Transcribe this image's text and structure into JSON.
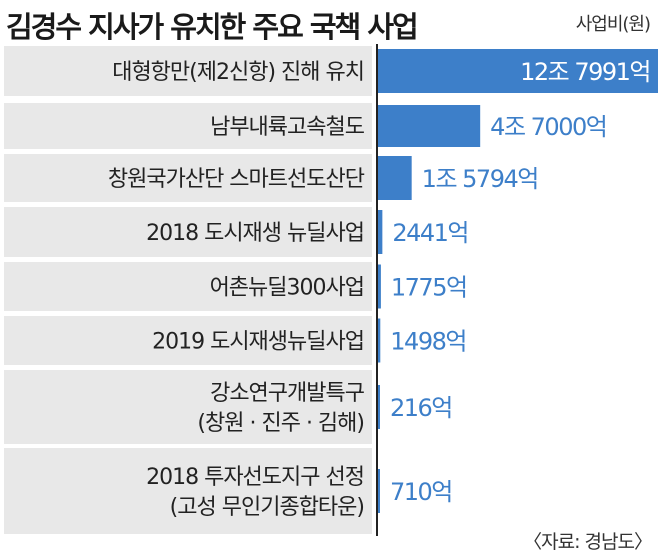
{
  "header": {
    "title": "김경수 지사가 유치한 주요 국책 사업",
    "unit": "사업비(원)"
  },
  "source": "〈자료: 경남도〉",
  "colors": {
    "bar": "#3d7fc9",
    "value_text": "#3d7fc9",
    "value_text_inside": "#ffffff",
    "row_bg": "#e8e8e8",
    "axis": "#222222"
  },
  "chart_data": {
    "type": "bar",
    "orientation": "horizontal",
    "title": "김경수 지사가 유치한 주요 국책 사업",
    "unit_label": "사업비(원)",
    "categories": [
      [
        "대형항만(제2신항) 진해 유치"
      ],
      [
        "남부내륙고속철도"
      ],
      [
        "창원국가산단 스마트선도산단"
      ],
      [
        "2018 도시재생 뉴딜사업"
      ],
      [
        "어촌뉴딜300사업"
      ],
      [
        "2019 도시재생뉴딜사업"
      ],
      [
        "강소연구개발특구",
        "(창원 · 진주 · 김해)"
      ],
      [
        "2018 투자선도지구 선정",
        "(고성 무인기종합타운)"
      ]
    ],
    "values": [
      127991,
      47000,
      15794,
      2441,
      1775,
      1498,
      216,
      710
    ],
    "value_labels": [
      "12조 7991억",
      "4조 7000억",
      "1조 5794억",
      "2441억",
      "1775억",
      "1498억",
      "216억",
      "710억"
    ],
    "value_unit": "억원"
  }
}
